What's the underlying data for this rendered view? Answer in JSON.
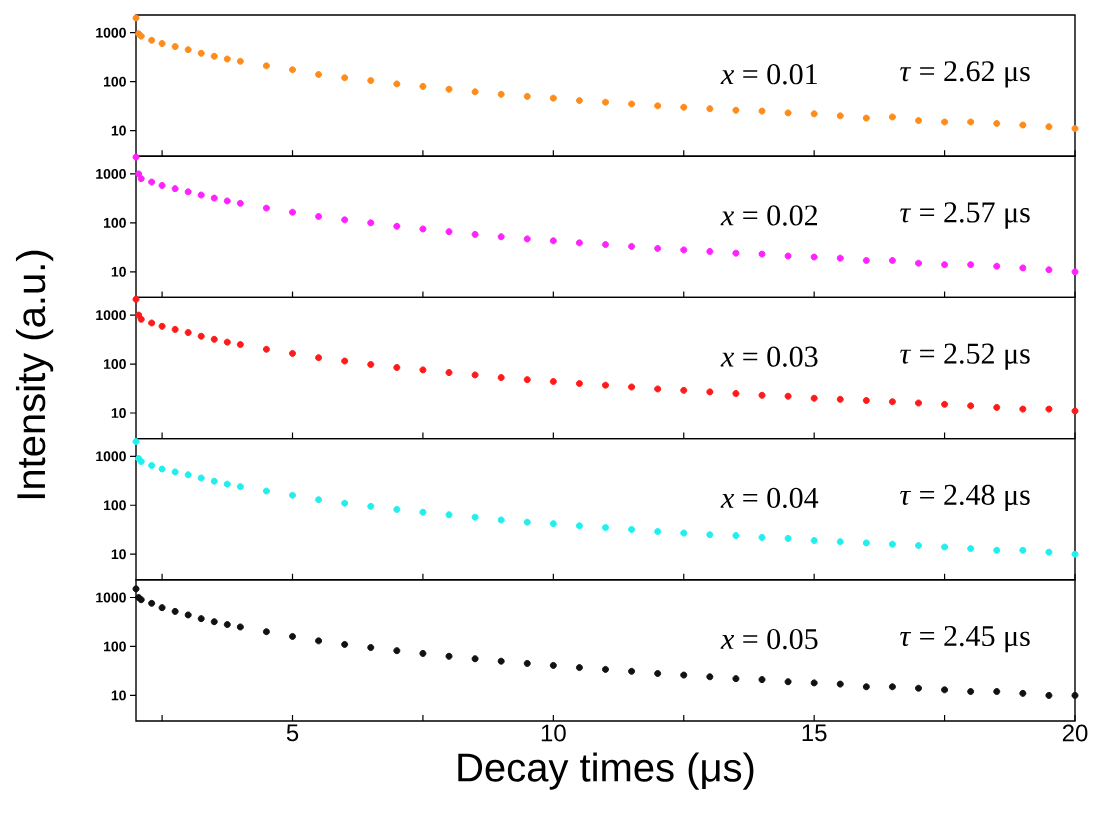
{
  "chart_data": [
    {
      "type": "scatter",
      "color": "#ff8c1a",
      "marker": "circle",
      "log": "y",
      "tick_labels": "y",
      "xlim": [
        2,
        20
      ],
      "ylim": [
        3,
        2300
      ],
      "yticks": [
        10,
        100,
        1000
      ],
      "xticks": [
        {
          "value": 2.5,
          "label": null
        },
        5,
        {
          "value": 7.5,
          "label": null
        },
        10,
        {
          "value": 12.5,
          "label": null
        },
        15,
        {
          "value": 17.5,
          "label": null
        },
        20
      ],
      "annotations": [
        "*x* = 0.01",
        "*τ* = 2.62 μs"
      ],
      "x": [
        2,
        2.05,
        2.1,
        2.3,
        2.5,
        2.75,
        3,
        3.25,
        3.5,
        3.75,
        4,
        4.5,
        5,
        5.5,
        6,
        6.5,
        7,
        7.5,
        8,
        8.5,
        9,
        9.5,
        10,
        10.5,
        11,
        11.5,
        12,
        12.5,
        13,
        13.5,
        14,
        14.5,
        15,
        15.5,
        16,
        16.5,
        17,
        17.5,
        18,
        18.5,
        19,
        19.5,
        20
      ],
      "values": [
        2000,
        950,
        850,
        700,
        600,
        520,
        450,
        380,
        330,
        290,
        260,
        210,
        175,
        140,
        120,
        105,
        90,
        80,
        70,
        62,
        55,
        50,
        46,
        41,
        38,
        35,
        32,
        30,
        28,
        26,
        25,
        23,
        22,
        20,
        18,
        19,
        16,
        15,
        15,
        14,
        13,
        12,
        11
      ]
    },
    {
      "type": "scatter",
      "color": "#ff22ff",
      "marker": "circle",
      "log": "y",
      "tick_labels": "y",
      "xlim": [
        2,
        20
      ],
      "ylim": [
        3,
        2300
      ],
      "yticks": [
        10,
        100,
        1000
      ],
      "xticks": [
        {
          "value": 2.5,
          "label": null
        },
        5,
        {
          "value": 7.5,
          "label": null
        },
        10,
        {
          "value": 12.5,
          "label": null
        },
        15,
        {
          "value": 17.5,
          "label": null
        },
        20
      ],
      "annotations": [
        "*x* = 0.02",
        "*τ* = 2.57 μs"
      ],
      "x": [
        2,
        2.05,
        2.1,
        2.3,
        2.5,
        2.75,
        3,
        3.25,
        3.5,
        3.75,
        4,
        4.5,
        5,
        5.5,
        6,
        6.5,
        7,
        7.5,
        8,
        8.5,
        9,
        9.5,
        10,
        10.5,
        11,
        11.5,
        12,
        12.5,
        13,
        13.5,
        14,
        14.5,
        15,
        15.5,
        16,
        16.5,
        17,
        17.5,
        18,
        18.5,
        19,
        19.5,
        20
      ],
      "values": [
        2200,
        1000,
        800,
        680,
        580,
        500,
        430,
        370,
        320,
        280,
        250,
        200,
        165,
        135,
        115,
        100,
        85,
        75,
        66,
        58,
        52,
        47,
        43,
        39,
        36,
        33,
        30,
        28,
        26,
        24,
        23,
        21,
        20,
        19,
        17,
        17,
        15,
        14,
        14,
        13,
        12,
        11,
        10
      ]
    },
    {
      "type": "scatter",
      "color": "#ff1a1a",
      "marker": "circle",
      "log": "y",
      "tick_labels": "y",
      "xlim": [
        2,
        20
      ],
      "ylim": [
        3,
        2300
      ],
      "yticks": [
        10,
        100,
        1000
      ],
      "xticks": [
        {
          "value": 2.5,
          "label": null
        },
        5,
        {
          "value": 7.5,
          "label": null
        },
        10,
        {
          "value": 12.5,
          "label": null
        },
        15,
        {
          "value": 17.5,
          "label": null
        },
        20
      ],
      "annotations": [
        "*x* = 0.03",
        "*τ* = 2.52 μs"
      ],
      "ylabel": "Intensity (a.u.)",
      "x": [
        2,
        2.05,
        2.1,
        2.3,
        2.5,
        2.75,
        3,
        3.25,
        3.5,
        3.75,
        4,
        4.5,
        5,
        5.5,
        6,
        6.5,
        7,
        7.5,
        8,
        8.5,
        9,
        9.5,
        10,
        10.5,
        11,
        11.5,
        12,
        12.5,
        13,
        13.5,
        14,
        14.5,
        15,
        15.5,
        16,
        16.5,
        17,
        17.5,
        18,
        18.5,
        19,
        19.5,
        20
      ],
      "values": [
        2100,
        1000,
        820,
        690,
        590,
        510,
        440,
        370,
        320,
        280,
        250,
        200,
        165,
        135,
        115,
        98,
        85,
        76,
        67,
        60,
        53,
        48,
        44,
        40,
        37,
        34,
        31,
        29,
        27,
        25,
        23,
        22,
        20,
        19,
        18,
        17,
        16,
        15,
        14,
        13,
        12,
        12,
        11
      ]
    },
    {
      "type": "scatter",
      "color": "#22eeee",
      "marker": "circle",
      "log": "y",
      "tick_labels": "y",
      "xlim": [
        2,
        20
      ],
      "ylim": [
        3,
        2300
      ],
      "yticks": [
        10,
        100,
        1000
      ],
      "xticks": [
        {
          "value": 2.5,
          "label": null
        },
        5,
        {
          "value": 7.5,
          "label": null
        },
        10,
        {
          "value": 12.5,
          "label": null
        },
        15,
        {
          "value": 17.5,
          "label": null
        },
        20
      ],
      "annotations": [
        "*x* = 0.04",
        "*τ* = 2.48 μs"
      ],
      "x": [
        2,
        2.05,
        2.1,
        2.3,
        2.5,
        2.75,
        3,
        3.25,
        3.5,
        3.75,
        4,
        4.5,
        5,
        5.5,
        6,
        6.5,
        7,
        7.5,
        8,
        8.5,
        9,
        9.5,
        10,
        10.5,
        11,
        11.5,
        12,
        12.5,
        13,
        13.5,
        14,
        14.5,
        15,
        15.5,
        16,
        16.5,
        17,
        17.5,
        18,
        18.5,
        19,
        19.5,
        20
      ],
      "values": [
        2000,
        900,
        780,
        650,
        550,
        480,
        420,
        360,
        310,
        270,
        240,
        195,
        160,
        130,
        110,
        95,
        82,
        72,
        64,
        57,
        50,
        45,
        42,
        38,
        35,
        32,
        29,
        27,
        25,
        24,
        22,
        21,
        19,
        18,
        17,
        16,
        15,
        14,
        13,
        12,
        12,
        11,
        10
      ]
    },
    {
      "type": "scatter",
      "color": "#111111",
      "marker": "circle",
      "log": "y",
      "xlim": [
        2,
        20
      ],
      "ylim": [
        3,
        2300
      ],
      "yticks": [
        10,
        100,
        1000
      ],
      "xticks": [
        {
          "value": 2.5,
          "label": null
        },
        5,
        {
          "value": 7.5,
          "label": null
        },
        10,
        {
          "value": 12.5,
          "label": null
        },
        15,
        {
          "value": 17.5,
          "label": null
        },
        20
      ],
      "annotations": [
        "*x* = 0.05",
        "*τ* = 2.45 μs"
      ],
      "xlabel": "Decay times (μs)",
      "x": [
        2,
        2.05,
        2.1,
        2.3,
        2.5,
        2.75,
        3,
        3.25,
        3.5,
        3.75,
        4,
        4.5,
        5,
        5.5,
        6,
        6.5,
        7,
        7.5,
        8,
        8.5,
        9,
        9.5,
        10,
        10.5,
        11,
        11.5,
        12,
        12.5,
        13,
        13.5,
        14,
        14.5,
        15,
        15.5,
        16,
        16.5,
        17,
        17.5,
        18,
        18.5,
        19,
        19.5,
        20
      ],
      "values": [
        1500,
        1000,
        900,
        760,
        620,
        520,
        440,
        370,
        320,
        280,
        250,
        200,
        160,
        130,
        110,
        95,
        82,
        72,
        63,
        56,
        50,
        45,
        41,
        37,
        34,
        31,
        28,
        26,
        24,
        22,
        21,
        19,
        18,
        17,
        15,
        15,
        14,
        13,
        12,
        12,
        11,
        10,
        10
      ]
    }
  ]
}
